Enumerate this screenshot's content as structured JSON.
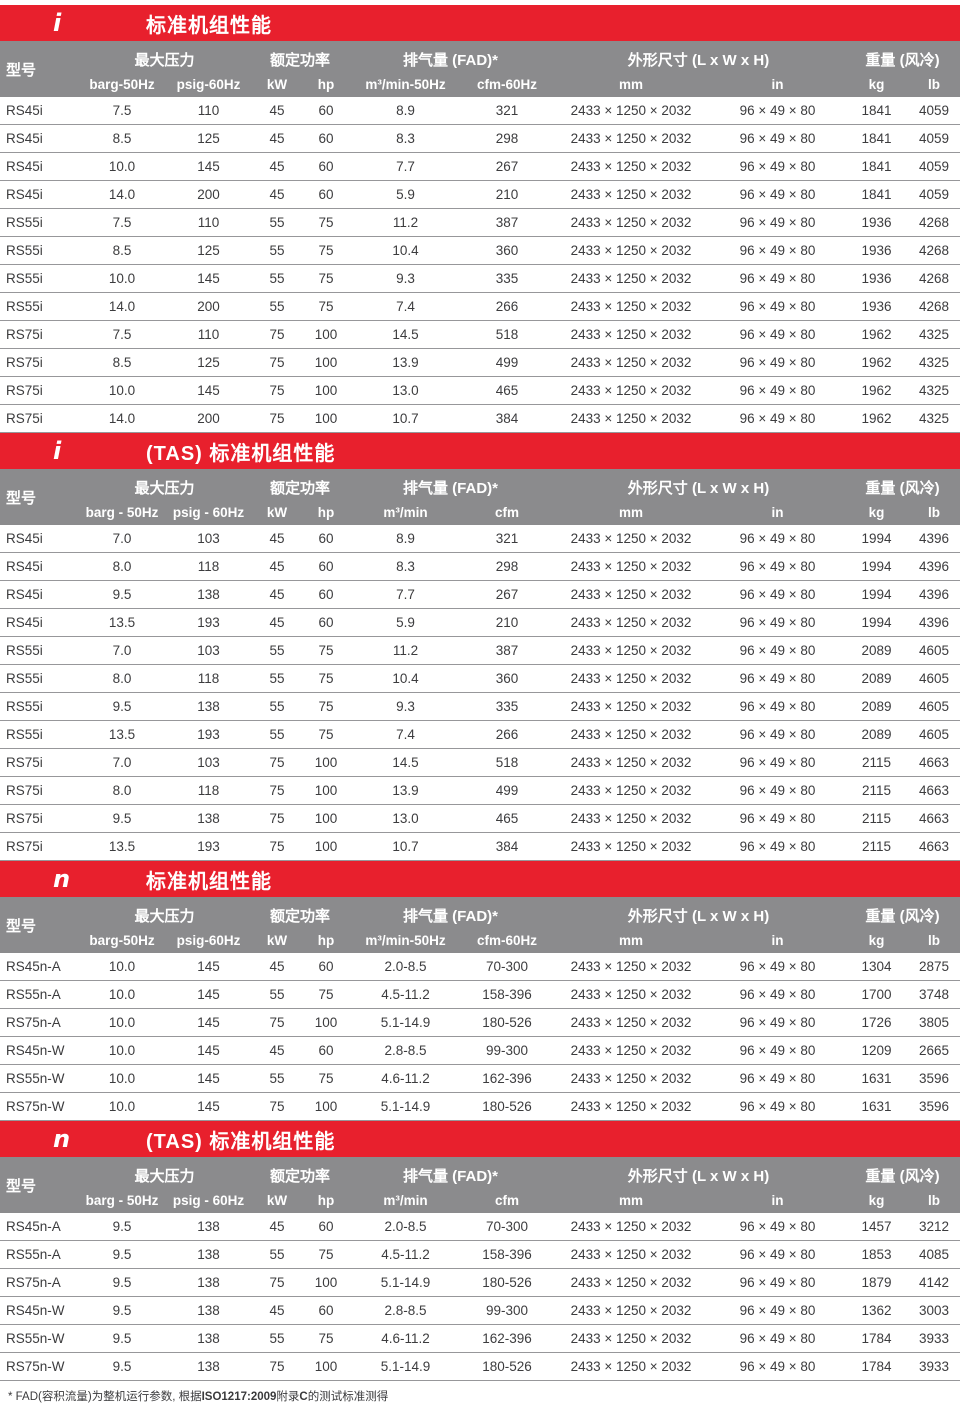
{
  "colors": {
    "accent_red": "#e8202d",
    "header_gray": "#8b8b8d",
    "row_line": "#97979a",
    "text": "#3c3c3e"
  },
  "column_keys": [
    "model",
    "barg",
    "psig",
    "kw",
    "hp",
    "flow_m3",
    "flow_cfm",
    "dims_mm",
    "dims_in",
    "weight_kg",
    "weight_lb"
  ],
  "footnote": {
    "pre": "* FAD(容积流量)为整机运行参数, 根据",
    "iso": "ISO1217:2009",
    "mid": "附录",
    "c": "C",
    "post": "的测试标准测得"
  },
  "sections": [
    {
      "icon": "i",
      "title": "标准机组性能",
      "groups": [
        "型号",
        "最大压力",
        "额定功率",
        "排气量 (FAD)*",
        "外形尺寸 (L x W x H)",
        "重量 (风冷)"
      ],
      "units": [
        "barg-50Hz",
        "psig-60Hz",
        "kW",
        "hp",
        "m³/min-50Hz",
        "cfm-60Hz",
        "mm",
        "in",
        "kg",
        "lb"
      ],
      "rows": [
        [
          "RS45i",
          "7.5",
          "110",
          "45",
          "60",
          "8.9",
          "321",
          "2433 × 1250 × 2032",
          "96 × 49 × 80",
          "1841",
          "4059"
        ],
        [
          "RS45i",
          "8.5",
          "125",
          "45",
          "60",
          "8.3",
          "298",
          "2433 × 1250 × 2032",
          "96 × 49 × 80",
          "1841",
          "4059"
        ],
        [
          "RS45i",
          "10.0",
          "145",
          "45",
          "60",
          "7.7",
          "267",
          "2433 × 1250 × 2032",
          "96 × 49 × 80",
          "1841",
          "4059"
        ],
        [
          "RS45i",
          "14.0",
          "200",
          "45",
          "60",
          "5.9",
          "210",
          "2433 × 1250 × 2032",
          "96 × 49 × 80",
          "1841",
          "4059"
        ],
        [
          "RS55i",
          "7.5",
          "110",
          "55",
          "75",
          "11.2",
          "387",
          "2433 × 1250 × 2032",
          "96 × 49 × 80",
          "1936",
          "4268"
        ],
        [
          "RS55i",
          "8.5",
          "125",
          "55",
          "75",
          "10.4",
          "360",
          "2433 × 1250 × 2032",
          "96 × 49 × 80",
          "1936",
          "4268"
        ],
        [
          "RS55i",
          "10.0",
          "145",
          "55",
          "75",
          "9.3",
          "335",
          "2433 × 1250 × 2032",
          "96 × 49 × 80",
          "1936",
          "4268"
        ],
        [
          "RS55i",
          "14.0",
          "200",
          "55",
          "75",
          "7.4",
          "266",
          "2433 × 1250 × 2032",
          "96 × 49 × 80",
          "1936",
          "4268"
        ],
        [
          "RS75i",
          "7.5",
          "110",
          "75",
          "100",
          "14.5",
          "518",
          "2433 × 1250 × 2032",
          "96 × 49 × 80",
          "1962",
          "4325"
        ],
        [
          "RS75i",
          "8.5",
          "125",
          "75",
          "100",
          "13.9",
          "499",
          "2433 × 1250 × 2032",
          "96 × 49 × 80",
          "1962",
          "4325"
        ],
        [
          "RS75i",
          "10.0",
          "145",
          "75",
          "100",
          "13.0",
          "465",
          "2433 × 1250 × 2032",
          "96 × 49 × 80",
          "1962",
          "4325"
        ],
        [
          "RS75i",
          "14.0",
          "200",
          "75",
          "100",
          "10.7",
          "384",
          "2433 × 1250 × 2032",
          "96 × 49 × 80",
          "1962",
          "4325"
        ]
      ]
    },
    {
      "icon": "i",
      "title": "(TAS) 标准机组性能",
      "groups": [
        "型号",
        "最大压力",
        "额定功率",
        "排气量 (FAD)*",
        "外形尺寸 (L x W x H)",
        "重量 (风冷)"
      ],
      "units": [
        "barg - 50Hz",
        "psig - 60Hz",
        "kW",
        "hp",
        "m³/min",
        "cfm",
        "mm",
        "in",
        "kg",
        "lb"
      ],
      "rows": [
        [
          "RS45i",
          "7.0",
          "103",
          "45",
          "60",
          "8.9",
          "321",
          "2433 × 1250 × 2032",
          "96 × 49 × 80",
          "1994",
          "4396"
        ],
        [
          "RS45i",
          "8.0",
          "118",
          "45",
          "60",
          "8.3",
          "298",
          "2433 × 1250 × 2032",
          "96 × 49 × 80",
          "1994",
          "4396"
        ],
        [
          "RS45i",
          "9.5",
          "138",
          "45",
          "60",
          "7.7",
          "267",
          "2433 × 1250 × 2032",
          "96 × 49 × 80",
          "1994",
          "4396"
        ],
        [
          "RS45i",
          "13.5",
          "193",
          "45",
          "60",
          "5.9",
          "210",
          "2433 × 1250 × 2032",
          "96 × 49 × 80",
          "1994",
          "4396"
        ],
        [
          "RS55i",
          "7.0",
          "103",
          "55",
          "75",
          "11.2",
          "387",
          "2433 × 1250 × 2032",
          "96 × 49 × 80",
          "2089",
          "4605"
        ],
        [
          "RS55i",
          "8.0",
          "118",
          "55",
          "75",
          "10.4",
          "360",
          "2433 × 1250 × 2032",
          "96 × 49 × 80",
          "2089",
          "4605"
        ],
        [
          "RS55i",
          "9.5",
          "138",
          "55",
          "75",
          "9.3",
          "335",
          "2433 × 1250 × 2032",
          "96 × 49 × 80",
          "2089",
          "4605"
        ],
        [
          "RS55i",
          "13.5",
          "193",
          "55",
          "75",
          "7.4",
          "266",
          "2433 × 1250 × 2032",
          "96 × 49 × 80",
          "2089",
          "4605"
        ],
        [
          "RS75i",
          "7.0",
          "103",
          "75",
          "100",
          "14.5",
          "518",
          "2433 × 1250 × 2032",
          "96 × 49 × 80",
          "2115",
          "4663"
        ],
        [
          "RS75i",
          "8.0",
          "118",
          "75",
          "100",
          "13.9",
          "499",
          "2433 × 1250 × 2032",
          "96 × 49 × 80",
          "2115",
          "4663"
        ],
        [
          "RS75i",
          "9.5",
          "138",
          "75",
          "100",
          "13.0",
          "465",
          "2433 × 1250 × 2032",
          "96 × 49 × 80",
          "2115",
          "4663"
        ],
        [
          "RS75i",
          "13.5",
          "193",
          "75",
          "100",
          "10.7",
          "384",
          "2433 × 1250 × 2032",
          "96 × 49 × 80",
          "2115",
          "4663"
        ]
      ]
    },
    {
      "icon": "n",
      "title": "标准机组性能",
      "groups": [
        "型号",
        "最大压力",
        "额定功率",
        "排气量 (FAD)*",
        "外形尺寸 (L x W x H)",
        "重量 (风冷)"
      ],
      "units": [
        "barg-50Hz",
        "psig-60Hz",
        "kW",
        "hp",
        "m³/min-50Hz",
        "cfm-60Hz",
        "mm",
        "in",
        "kg",
        "lb"
      ],
      "rows": [
        [
          "RS45n-A",
          "10.0",
          "145",
          "45",
          "60",
          "2.0-8.5",
          "70-300",
          "2433 × 1250 × 2032",
          "96 × 49 × 80",
          "1304",
          "2875"
        ],
        [
          "RS55n-A",
          "10.0",
          "145",
          "55",
          "75",
          "4.5-11.2",
          "158-396",
          "2433 × 1250 × 2032",
          "96 × 49 × 80",
          "1700",
          "3748"
        ],
        [
          "RS75n-A",
          "10.0",
          "145",
          "75",
          "100",
          "5.1-14.9",
          "180-526",
          "2433 × 1250 × 2032",
          "96 × 49 × 80",
          "1726",
          "3805"
        ],
        [
          "RS45n-W",
          "10.0",
          "145",
          "45",
          "60",
          "2.8-8.5",
          "99-300",
          "2433 × 1250 × 2032",
          "96 × 49 × 80",
          "1209",
          "2665"
        ],
        [
          "RS55n-W",
          "10.0",
          "145",
          "55",
          "75",
          "4.6-11.2",
          "162-396",
          "2433 × 1250 × 2032",
          "96 × 49 × 80",
          "1631",
          "3596"
        ],
        [
          "RS75n-W",
          "10.0",
          "145",
          "75",
          "100",
          "5.1-14.9",
          "180-526",
          "2433 × 1250 × 2032",
          "96 × 49 × 80",
          "1631",
          "3596"
        ]
      ]
    },
    {
      "icon": "n",
      "title": "(TAS) 标准机组性能",
      "groups": [
        "型号",
        "最大压力",
        "额定功率",
        "排气量 (FAD)*",
        "外形尺寸 (L x W x H)",
        "重量 (风冷)"
      ],
      "units": [
        "barg - 50Hz",
        "psig - 60Hz",
        "kW",
        "hp",
        "m³/min",
        "cfm",
        "mm",
        "in",
        "kg",
        "lb"
      ],
      "rows": [
        [
          "RS45n-A",
          "9.5",
          "138",
          "45",
          "60",
          "2.0-8.5",
          "70-300",
          "2433 × 1250 × 2032",
          "96 × 49 × 80",
          "1457",
          "3212"
        ],
        [
          "RS55n-A",
          "9.5",
          "138",
          "55",
          "75",
          "4.5-11.2",
          "158-396",
          "2433 × 1250 × 2032",
          "96 × 49 × 80",
          "1853",
          "4085"
        ],
        [
          "RS75n-A",
          "9.5",
          "138",
          "75",
          "100",
          "5.1-14.9",
          "180-526",
          "2433 × 1250 × 2032",
          "96 × 49 × 80",
          "1879",
          "4142"
        ],
        [
          "RS45n-W",
          "9.5",
          "138",
          "45",
          "60",
          "2.8-8.5",
          "99-300",
          "2433 × 1250 × 2032",
          "96 × 49 × 80",
          "1362",
          "3003"
        ],
        [
          "RS55n-W",
          "9.5",
          "138",
          "55",
          "75",
          "4.6-11.2",
          "162-396",
          "2433 × 1250 × 2032",
          "96 × 49 × 80",
          "1784",
          "3933"
        ],
        [
          "RS75n-W",
          "9.5",
          "138",
          "75",
          "100",
          "5.1-14.9",
          "180-526",
          "2433 × 1250 × 2032",
          "96 × 49 × 80",
          "1784",
          "3933"
        ]
      ]
    }
  ]
}
